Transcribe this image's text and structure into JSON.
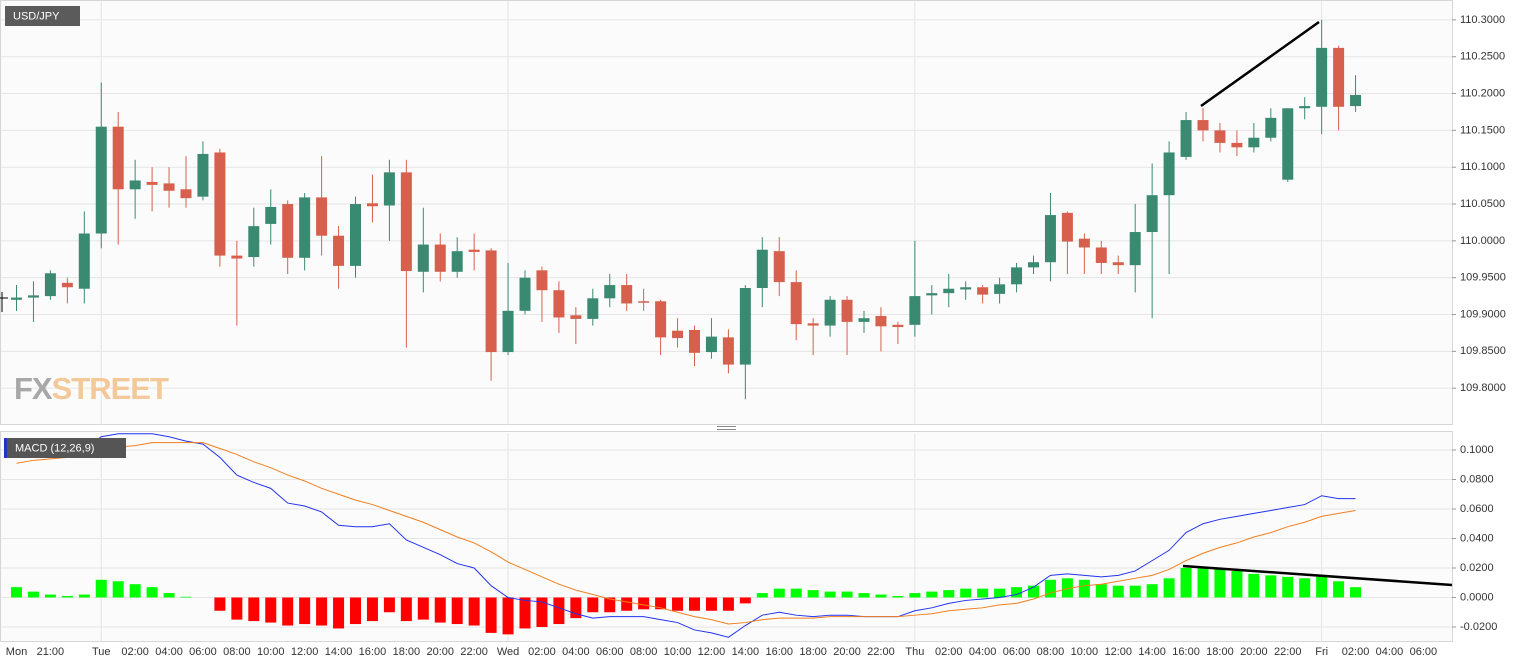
{
  "chart_data": [
    {
      "type": "candlestick",
      "title": "USD/JPY",
      "watermark": [
        "FX",
        "STREET"
      ],
      "up_color": "#3a8a72",
      "down_color": "#d6604d",
      "ylim": [
        109.75,
        110.327
      ],
      "yticks": [
        {
          "value": 109.8,
          "label": "109.8000"
        },
        {
          "value": 109.85,
          "label": "109.8500"
        },
        {
          "value": 109.9,
          "label": "109.9000"
        },
        {
          "value": 109.95,
          "label": "109.9500"
        },
        {
          "value": 110.0,
          "label": "110.0000"
        },
        {
          "value": 110.05,
          "label": "110.0500"
        },
        {
          "value": 110.1,
          "label": "110.1000"
        },
        {
          "value": 110.15,
          "label": "110.1500"
        },
        {
          "value": 110.2,
          "label": "110.2000"
        },
        {
          "value": 110.25,
          "label": "110.2500"
        },
        {
          "value": 110.3,
          "label": "110.3000"
        }
      ],
      "grid": true,
      "open": [
        109.92,
        109.923,
        109.925,
        109.943,
        109.935,
        110.01,
        110.155,
        110.07,
        110.08,
        110.078,
        110.07,
        110.06,
        110.12,
        109.98,
        109.978,
        110.023,
        110.05,
        109.977,
        110.059,
        110.007,
        109.966,
        110.051,
        110.048,
        110.093,
        109.958,
        109.995,
        109.958,
        109.988,
        109.987,
        109.849,
        109.905,
        109.96,
        109.933,
        109.899,
        109.894,
        109.922,
        109.94,
        109.918,
        109.918,
        109.878,
        109.879,
        109.849,
        109.869,
        109.832,
        109.936,
        109.986,
        109.944,
        109.888,
        109.885,
        109.92,
        109.89,
        109.898,
        109.886,
        109.886,
        109.926,
        109.929,
        109.934,
        109.937,
        109.928,
        109.941,
        109.964,
        109.971,
        110.038,
        110.003,
        109.991,
        109.971,
        109.967,
        110.012,
        110.062,
        110.114,
        110.164,
        110.15,
        110.133,
        110.127,
        110.14,
        110.083,
        110.18,
        110.182,
        110.262,
        110.183,
        null,
        null,
        null,
        null
      ],
      "high": [
        109.94,
        109.945,
        109.96,
        109.95,
        110.04,
        110.215,
        110.175,
        110.11,
        110.1,
        110.1,
        110.115,
        110.135,
        110.125,
        110.0,
        110.045,
        110.07,
        110.055,
        110.065,
        110.115,
        110.02,
        110.06,
        110.09,
        110.11,
        110.11,
        110.045,
        110.01,
        110.005,
        110.01,
        109.99,
        109.97,
        109.96,
        109.965,
        109.945,
        109.91,
        109.935,
        109.955,
        109.955,
        109.935,
        109.92,
        109.895,
        109.885,
        109.895,
        109.88,
        109.94,
        110.005,
        110.005,
        109.96,
        109.895,
        109.925,
        109.925,
        109.905,
        109.91,
        109.89,
        110.0,
        109.94,
        109.955,
        109.945,
        109.94,
        109.95,
        109.97,
        109.98,
        110.065,
        110.04,
        110.01,
        110.0,
        109.98,
        110.05,
        110.105,
        110.135,
        110.175,
        110.18,
        110.16,
        110.15,
        110.16,
        110.18,
        110.18,
        110.195,
        110.3,
        110.265,
        110.225,
        null,
        null,
        null,
        null
      ],
      "low": [
        109.905,
        109.89,
        109.92,
        109.915,
        109.915,
        109.99,
        109.995,
        110.03,
        110.04,
        110.045,
        110.045,
        110.055,
        109.965,
        109.885,
        109.965,
        109.995,
        109.955,
        109.96,
        109.98,
        109.935,
        109.95,
        110.025,
        110.0,
        109.855,
        109.93,
        109.945,
        109.95,
        109.96,
        109.81,
        109.845,
        109.9,
        109.89,
        109.875,
        109.86,
        109.885,
        109.91,
        109.905,
        109.905,
        109.845,
        109.855,
        109.83,
        109.84,
        109.82,
        109.785,
        109.91,
        109.925,
        109.865,
        109.845,
        109.87,
        109.845,
        109.875,
        109.85,
        109.86,
        109.87,
        109.9,
        109.91,
        109.92,
        109.915,
        109.915,
        109.93,
        109.955,
        109.945,
        109.955,
        109.955,
        109.955,
        109.955,
        109.93,
        109.895,
        109.955,
        110.11,
        110.135,
        110.12,
        110.115,
        110.12,
        110.135,
        110.08,
        110.165,
        110.145,
        110.15,
        110.175,
        null,
        null,
        null,
        null
      ],
      "close": [
        109.923,
        109.926,
        109.956,
        109.937,
        110.01,
        110.155,
        110.07,
        110.082,
        110.076,
        110.068,
        110.058,
        110.118,
        109.98,
        109.976,
        110.02,
        110.046,
        109.977,
        110.059,
        110.007,
        109.966,
        110.05,
        110.047,
        110.093,
        109.959,
        109.995,
        109.958,
        109.986,
        109.985,
        109.849,
        109.905,
        109.95,
        109.933,
        109.896,
        109.894,
        109.922,
        109.94,
        109.915,
        109.916,
        109.869,
        109.868,
        109.848,
        109.87,
        109.832,
        109.936,
        109.988,
        109.944,
        109.887,
        109.885,
        109.92,
        109.89,
        109.895,
        109.884,
        109.883,
        109.925,
        109.929,
        109.935,
        109.937,
        109.927,
        109.941,
        109.964,
        109.971,
        110.035,
        109.999,
        109.991,
        109.97,
        109.967,
        110.012,
        110.062,
        110.12,
        110.164,
        110.15,
        110.133,
        110.127,
        110.14,
        110.167,
        110.18,
        110.183,
        110.262,
        110.182,
        110.198,
        null,
        null,
        null,
        null
      ]
    },
    {
      "type": "macd",
      "title": "MACD (12,26,9)",
      "categories": [
        "Mon",
        null,
        "21:00",
        null,
        null,
        "Tue",
        null,
        "02:00",
        null,
        "04:00",
        null,
        "06:00",
        null,
        "08:00",
        null,
        "10:00",
        null,
        "12:00",
        null,
        "14:00",
        null,
        "16:00",
        null,
        "18:00",
        null,
        "20:00",
        null,
        "22:00",
        null,
        "Wed",
        null,
        "02:00",
        null,
        "04:00",
        null,
        "06:00",
        null,
        "08:00",
        null,
        "10:00",
        null,
        "12:00",
        null,
        "14:00",
        null,
        "16:00",
        null,
        "18:00",
        null,
        "20:00",
        null,
        "22:00",
        null,
        "Thu",
        null,
        "02:00",
        null,
        "04:00",
        null,
        "06:00",
        null,
        "08:00",
        null,
        "10:00",
        null,
        "12:00",
        null,
        "14:00",
        null,
        "16:00",
        null,
        "18:00",
        null,
        "20:00",
        null,
        "22:00",
        null,
        "Fri",
        null,
        "02:00",
        null,
        "04:00",
        null,
        "06:00"
      ],
      "ylim": [
        -0.0295,
        0.1122
      ],
      "yticks": [
        {
          "value": -0.02,
          "label": "-0.0200"
        },
        {
          "value": 0,
          "label": "0.0000"
        },
        {
          "value": 0.02,
          "label": "0.0200"
        },
        {
          "value": 0.04,
          "label": "0.0400"
        },
        {
          "value": 0.06,
          "label": "0.0600"
        },
        {
          "value": 0.08,
          "label": "0.0800"
        },
        {
          "value": 0.1,
          "label": "0.1000"
        }
      ],
      "grid": true,
      "histogram": {
        "positive_color": "#00ff00",
        "negative_color": "#ff0000",
        "values": [
          0.007,
          0.004,
          0.002,
          0.001,
          0.002,
          0.012,
          0.011,
          0.009,
          0.007,
          0.003,
          0.0005,
          0,
          -0.009,
          -0.015,
          -0.016,
          -0.017,
          -0.019,
          -0.018,
          -0.019,
          -0.021,
          -0.018,
          -0.016,
          -0.01,
          -0.016,
          -0.015,
          -0.017,
          -0.018,
          -0.019,
          -0.024,
          -0.025,
          -0.021,
          -0.02,
          -0.018,
          -0.014,
          -0.01,
          -0.01,
          -0.009,
          -0.008,
          -0.008,
          -0.009,
          -0.009,
          -0.009,
          -0.009,
          -0.004,
          0.003,
          0.006,
          0.006,
          0.005,
          0.004,
          0.004,
          0.003,
          0.002,
          0.001,
          0.003,
          0.004,
          0.005,
          0.006,
          0.006,
          0.006,
          0.007,
          0.008,
          0.012,
          0.013,
          0.012,
          0.009,
          0.008,
          0.008,
          0.009,
          0.013,
          0.02,
          0.02,
          0.02,
          0.018,
          0.016,
          0.015,
          0.014,
          0.013,
          0.014,
          0.011,
          0.007,
          null,
          null,
          null,
          null
        ]
      },
      "series": [
        {
          "color": "#2233ee",
          "values": [
            0.0966,
            0.098,
            0.099,
            0.1007,
            0.101,
            0.109,
            0.111,
            0.111,
            0.111,
            0.109,
            0.106,
            0.104,
            0.095,
            0.083,
            0.078,
            0.074,
            0.064,
            0.062,
            0.058,
            0.049,
            0.048,
            0.048,
            0.05,
            0.039,
            0.034,
            0.029,
            0.023,
            0.02,
            0.008,
            0.0,
            -0.002,
            -0.003,
            -0.007,
            -0.011,
            -0.014,
            -0.013,
            -0.013,
            -0.013,
            -0.015,
            -0.017,
            -0.022,
            -0.024,
            -0.027,
            -0.019,
            -0.012,
            -0.01,
            -0.012,
            -0.013,
            -0.012,
            -0.012,
            -0.013,
            -0.013,
            -0.013,
            -0.009,
            -0.007,
            -0.004,
            -0.002,
            -0.001,
            0.0,
            0.002,
            0.007,
            0.015,
            0.016,
            0.015,
            0.014,
            0.015,
            0.018,
            0.025,
            0.032,
            0.044,
            0.05,
            0.053,
            0.055,
            0.057,
            0.059,
            0.061,
            0.063,
            0.069,
            0.067,
            0.067,
            null,
            null,
            null,
            null
          ]
        },
        {
          "color": "#f07f1f",
          "values": [
            0.091,
            0.093,
            0.094,
            0.095,
            0.095,
            0.099,
            0.102,
            0.103,
            0.105,
            0.105,
            0.105,
            0.105,
            0.101,
            0.097,
            0.092,
            0.088,
            0.083,
            0.079,
            0.074,
            0.07,
            0.066,
            0.063,
            0.059,
            0.055,
            0.051,
            0.046,
            0.041,
            0.037,
            0.031,
            0.024,
            0.019,
            0.014,
            0.009,
            0.005,
            0.002,
            -0.001,
            -0.003,
            -0.005,
            -0.007,
            -0.01,
            -0.013,
            -0.015,
            -0.018,
            -0.017,
            -0.015,
            -0.014,
            -0.014,
            -0.014,
            -0.013,
            -0.013,
            -0.013,
            -0.013,
            -0.013,
            -0.012,
            -0.011,
            -0.009,
            -0.008,
            -0.007,
            -0.005,
            -0.004,
            -0.001,
            0.003,
            0.006,
            0.008,
            0.009,
            0.011,
            0.013,
            0.015,
            0.019,
            0.025,
            0.03,
            0.034,
            0.037,
            0.041,
            0.044,
            0.048,
            0.051,
            0.055,
            0.057,
            0.059,
            null,
            null,
            null,
            null
          ]
        }
      ]
    }
  ]
}
